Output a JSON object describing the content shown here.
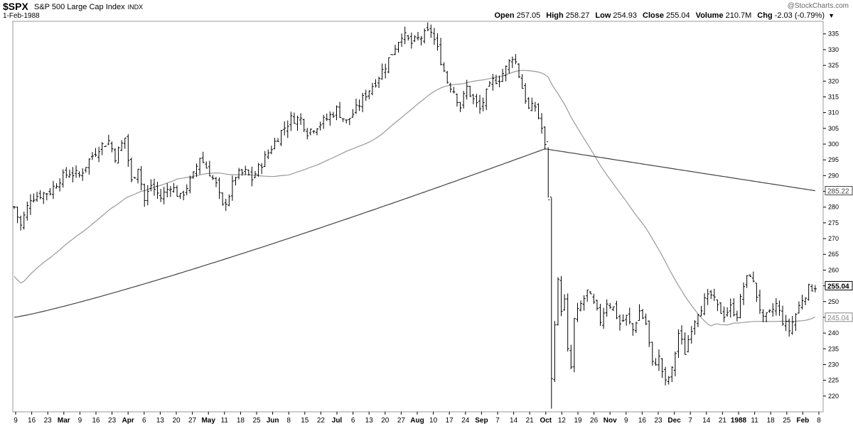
{
  "header": {
    "symbol": "$SPX",
    "name": "S&P 500 Large Cap Index",
    "exchange": "INDX",
    "date": "1-Feb-1988",
    "brand": "@StockCharts.com",
    "ohlc": [
      {
        "label": "Open",
        "value": "257.05"
      },
      {
        "label": "High",
        "value": "258.27"
      },
      {
        "label": "Low",
        "value": "254.93"
      },
      {
        "label": "Close",
        "value": "255.04"
      },
      {
        "label": "Volume",
        "value": "210.7M"
      },
      {
        "label": "Chg",
        "value": "-2.03 (-0.79%)"
      }
    ]
  },
  "chart_data": {
    "type": "line",
    "subtype": "ohlc-bar",
    "ylim": [
      215,
      339
    ],
    "y_ticks": [
      220,
      225,
      230,
      235,
      240,
      245,
      250,
      255,
      260,
      265,
      270,
      275,
      280,
      285,
      290,
      295,
      300,
      305,
      310,
      315,
      320,
      325,
      330,
      335
    ],
    "x_ticks": [
      {
        "label": "9"
      },
      {
        "label": "16"
      },
      {
        "label": "23"
      },
      {
        "label": "Mar",
        "month": true
      },
      {
        "label": "9"
      },
      {
        "label": "16"
      },
      {
        "label": "23"
      },
      {
        "label": "Apr",
        "month": true
      },
      {
        "label": "6"
      },
      {
        "label": "13"
      },
      {
        "label": "20"
      },
      {
        "label": "27"
      },
      {
        "label": "May",
        "month": true
      },
      {
        "label": "11"
      },
      {
        "label": "18"
      },
      {
        "label": "25"
      },
      {
        "label": "Jun",
        "month": true
      },
      {
        "label": "8"
      },
      {
        "label": "15"
      },
      {
        "label": "22"
      },
      {
        "label": "Jul",
        "month": true
      },
      {
        "label": "6"
      },
      {
        "label": "13"
      },
      {
        "label": "20"
      },
      {
        "label": "27"
      },
      {
        "label": "Aug",
        "month": true
      },
      {
        "label": "10"
      },
      {
        "label": "17"
      },
      {
        "label": "24"
      },
      {
        "label": "Sep",
        "month": true
      },
      {
        "label": "7"
      },
      {
        "label": "14"
      },
      {
        "label": "21"
      },
      {
        "label": "Oct",
        "month": true
      },
      {
        "label": "12"
      },
      {
        "label": "19"
      },
      {
        "label": "26"
      },
      {
        "label": "Nov",
        "month": true
      },
      {
        "label": "9"
      },
      {
        "label": "16"
      },
      {
        "label": "23"
      },
      {
        "label": "Dec",
        "month": true
      },
      {
        "label": "7"
      },
      {
        "label": "14"
      },
      {
        "label": "21"
      },
      {
        "label": "1988",
        "month": true
      },
      {
        "label": "11"
      },
      {
        "label": "18"
      },
      {
        "label": "25"
      },
      {
        "label": "Feb",
        "month": true
      },
      {
        "label": "8"
      }
    ],
    "price_labels": [
      {
        "name": "ma200",
        "value": "285.22",
        "price": 285.22,
        "color": "#444444"
      },
      {
        "name": "close",
        "value": "255.04",
        "price": 255.04,
        "color": "#000000"
      },
      {
        "name": "ma50",
        "value": "245.04",
        "price": 245.04,
        "color": "#888888"
      }
    ],
    "price_waypoints": [
      [
        0,
        280
      ],
      [
        2,
        274
      ],
      [
        5,
        283
      ],
      [
        8,
        284
      ],
      [
        11,
        285
      ],
      [
        14,
        289
      ],
      [
        17,
        291
      ],
      [
        20,
        290
      ],
      [
        23,
        295
      ],
      [
        26,
        299
      ],
      [
        29,
        301
      ],
      [
        31,
        296
      ],
      [
        34,
        302
      ],
      [
        36,
        288
      ],
      [
        38,
        293
      ],
      [
        40,
        282
      ],
      [
        42,
        287
      ],
      [
        45,
        283
      ],
      [
        48,
        287
      ],
      [
        51,
        283
      ],
      [
        55,
        290
      ],
      [
        57,
        296
      ],
      [
        60,
        291
      ],
      [
        62,
        287
      ],
      [
        64,
        280
      ],
      [
        66,
        284
      ],
      [
        68,
        290
      ],
      [
        71,
        291
      ],
      [
        73,
        289
      ],
      [
        76,
        294
      ],
      [
        79,
        299
      ],
      [
        82,
        304
      ],
      [
        85,
        308
      ],
      [
        88,
        308
      ],
      [
        90,
        304
      ],
      [
        93,
        306
      ],
      [
        96,
        308
      ],
      [
        99,
        311
      ],
      [
        102,
        307
      ],
      [
        105,
        311
      ],
      [
        108,
        316
      ],
      [
        111,
        320
      ],
      [
        114,
        325
      ],
      [
        117,
        331
      ],
      [
        119,
        335
      ],
      [
        122,
        332
      ],
      [
        125,
        334
      ],
      [
        128,
        336
      ],
      [
        130,
        330
      ],
      [
        133,
        320
      ],
      [
        135,
        317
      ],
      [
        137,
        312
      ],
      [
        139,
        318
      ],
      [
        141,
        314
      ],
      [
        143,
        311
      ],
      [
        145,
        316
      ],
      [
        147,
        320
      ],
      [
        149,
        321
      ],
      [
        151,
        324
      ],
      [
        153,
        328
      ],
      [
        154,
        326
      ],
      [
        156,
        318
      ],
      [
        158,
        311
      ],
      [
        160,
        312
      ],
      [
        162,
        305
      ],
      [
        163,
        299
      ],
      [
        164,
        283
      ],
      [
        165,
        225
      ],
      [
        166,
        244
      ],
      [
        167,
        256
      ],
      [
        168,
        248
      ],
      [
        169,
        250
      ],
      [
        170,
        234
      ],
      [
        171,
        229
      ],
      [
        172,
        244
      ],
      [
        174,
        249
      ],
      [
        176,
        253
      ],
      [
        178,
        249
      ],
      [
        180,
        244
      ],
      [
        182,
        250
      ],
      [
        184,
        248
      ],
      [
        186,
        243
      ],
      [
        188,
        245
      ],
      [
        190,
        241
      ],
      [
        192,
        247
      ],
      [
        194,
        243
      ],
      [
        196,
        230
      ],
      [
        198,
        232
      ],
      [
        200,
        224
      ],
      [
        202,
        228
      ],
      [
        204,
        240
      ],
      [
        206,
        234
      ],
      [
        208,
        242
      ],
      [
        210,
        247
      ],
      [
        212,
        250
      ],
      [
        214,
        252
      ],
      [
        216,
        248
      ],
      [
        218,
        246
      ],
      [
        220,
        248
      ],
      [
        222,
        246
      ],
      [
        224,
        255
      ],
      [
        226,
        259
      ],
      [
        228,
        252
      ],
      [
        230,
        244
      ],
      [
        232,
        246
      ],
      [
        234,
        249
      ],
      [
        236,
        244
      ],
      [
        238,
        241
      ],
      [
        240,
        246
      ],
      [
        242,
        251
      ],
      [
        244,
        254
      ],
      [
        246,
        255
      ]
    ]
  }
}
